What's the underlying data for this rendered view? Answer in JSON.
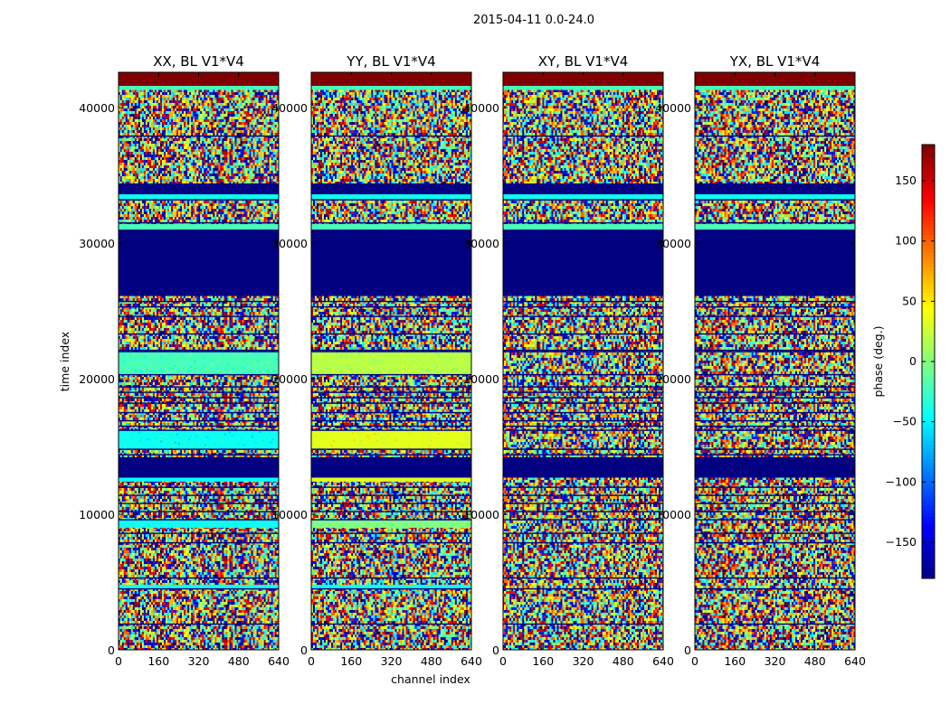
{
  "chart_data": {
    "type": "heatmap",
    "suptitle": "2015-04-11 0.0-24.0",
    "xlabel": "channel index",
    "ylabel": "time index",
    "xlim": [
      0,
      640
    ],
    "ylim": [
      0,
      42600
    ],
    "xticks": [
      0,
      160,
      320,
      480,
      640
    ],
    "yticks": [
      0,
      10000,
      20000,
      30000,
      40000
    ],
    "panels": [
      {
        "title": "XX, BL V1*V4",
        "pol": "XX"
      },
      {
        "title": "YY, BL V1*V4",
        "pol": "YY"
      },
      {
        "title": "XY, BL V1*V4",
        "pol": "XY"
      },
      {
        "title": "YX, BL V1*V4",
        "pol": "YX"
      }
    ],
    "colorbar": {
      "label": "phase (deg.)",
      "range": [
        -180,
        180
      ],
      "ticks": [
        -150,
        -100,
        -50,
        0,
        50,
        100,
        150
      ],
      "tick_labels": [
        "−150",
        "−100",
        "−50",
        "0",
        "50",
        "100",
        "150"
      ],
      "colormap": "jet"
    },
    "bands": [
      {
        "t0": 41600,
        "t1": 42600,
        "kind": "solid",
        "phase": 180,
        "pols": [
          "XX",
          "YY",
          "XY",
          "YX"
        ]
      },
      {
        "t0": 41300,
        "t1": 41600,
        "kind": "solid",
        "phase": -20,
        "pols": [
          "XX",
          "YY",
          "XY",
          "YX"
        ]
      },
      {
        "t0": 33600,
        "t1": 34400,
        "kind": "solid",
        "phase": -180,
        "pols": [
          "XX",
          "YY",
          "XY",
          "YX"
        ]
      },
      {
        "t0": 33200,
        "t1": 33600,
        "kind": "solid",
        "phase": -40,
        "pols": [
          "XX",
          "YY",
          "XY",
          "YX"
        ]
      },
      {
        "t0": 31000,
        "t1": 31400,
        "kind": "solid",
        "phase": -20,
        "pols": [
          "XX",
          "YY",
          "XY",
          "YX"
        ]
      },
      {
        "t0": 26100,
        "t1": 31000,
        "kind": "solid",
        "phase": -180,
        "pols": [
          "XX",
          "YY",
          "XY",
          "YX"
        ]
      },
      {
        "t0": 20300,
        "t1": 22000,
        "kind": "smooth",
        "phase": -20,
        "pols": [
          "XX"
        ]
      },
      {
        "t0": 20300,
        "t1": 22000,
        "kind": "smooth",
        "phase": 20,
        "pols": [
          "YY"
        ]
      },
      {
        "t0": 14800,
        "t1": 16200,
        "kind": "smooth",
        "phase": -40,
        "pols": [
          "XX"
        ]
      },
      {
        "t0": 14800,
        "t1": 16200,
        "kind": "smooth",
        "phase": 35,
        "pols": [
          "YY"
        ]
      },
      {
        "t0": 12700,
        "t1": 14200,
        "kind": "solid",
        "phase": -180,
        "pols": [
          "XX",
          "YY",
          "XY",
          "YX"
        ]
      },
      {
        "t0": 12400,
        "t1": 12700,
        "kind": "solid",
        "phase": -45,
        "pols": [
          "XX"
        ]
      },
      {
        "t0": 12400,
        "t1": 12700,
        "kind": "solid",
        "phase": 35,
        "pols": [
          "YY"
        ]
      },
      {
        "t0": 9000,
        "t1": 9600,
        "kind": "solid",
        "phase": -40,
        "pols": [
          "XX"
        ]
      },
      {
        "t0": 9000,
        "t1": 9600,
        "kind": "solid",
        "phase": 0,
        "pols": [
          "YY"
        ]
      },
      {
        "t0": 4500,
        "t1": 4800,
        "kind": "solid",
        "phase": -40,
        "pols": [
          "XX",
          "YY"
        ]
      }
    ],
    "flag_lines": [
      37900,
      33200,
      31500,
      25700,
      25300,
      24600,
      23300,
      22100,
      22000,
      20300,
      19400,
      19000,
      18600,
      18200,
      17500,
      16900,
      16500,
      16200,
      14800,
      14400,
      12000,
      11400,
      10800,
      10200,
      9600,
      8600,
      7900,
      5300,
      4500,
      1900
    ]
  }
}
